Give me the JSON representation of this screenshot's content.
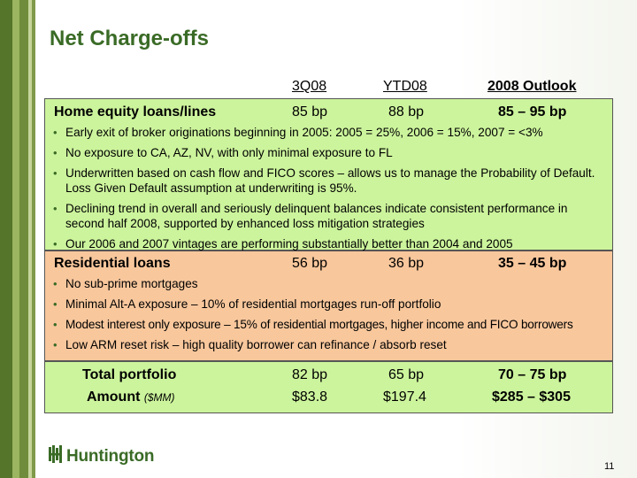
{
  "title": "Net Charge-offs",
  "columns": {
    "q": "3Q08",
    "ytd": "YTD08",
    "outlook": "2008 Outlook"
  },
  "home_equity": {
    "label": "Home equity loans/lines",
    "q": "85 bp",
    "ytd": "88 bp",
    "outlook": "85 – 95 bp",
    "bullets": [
      "Early exit of broker originations beginning in 2005: 2005 = 25%, 2006 = 15%, 2007 = <3%",
      "No exposure to CA, AZ, NV, with only minimal exposure to FL",
      "Underwritten based on cash flow and FICO scores – allows us to manage the Probability of Default.  Loss Given Default assumption at underwriting is 95%.",
      "Declining trend in overall and seriously delinquent balances indicate consistent performance in second half 2008, supported by enhanced loss mitigation strategies",
      "Our 2006 and 2007 vintages are performing substantially better than 2004 and 2005"
    ]
  },
  "residential": {
    "label": "Residential loans",
    "q": "56 bp",
    "ytd": "36 bp",
    "outlook": "35 – 45 bp",
    "bullets": [
      "No sub-prime mortgages",
      "Minimal Alt-A exposure – 10% of residential mortgages run-off portfolio",
      "Modest interest only exposure – 15% of residential mortgages, higher income and  FICO borrowers",
      "Low ARM reset risk – high quality borrower can refinance / absorb reset"
    ]
  },
  "total": {
    "label": "Total portfolio",
    "q": "82 bp",
    "ytd": "65 bp",
    "outlook": "70 – 75 bp"
  },
  "amount": {
    "label": "Amount",
    "unit": "($MM)",
    "q": "$83.8",
    "ytd": "$197.4",
    "outlook": "$285 – $305"
  },
  "logo_text": "Huntington",
  "page_number": "11",
  "colors": {
    "brand_green": "#3a6b26",
    "box_green": "#ccf49c",
    "box_orange": "#f8c79c"
  }
}
